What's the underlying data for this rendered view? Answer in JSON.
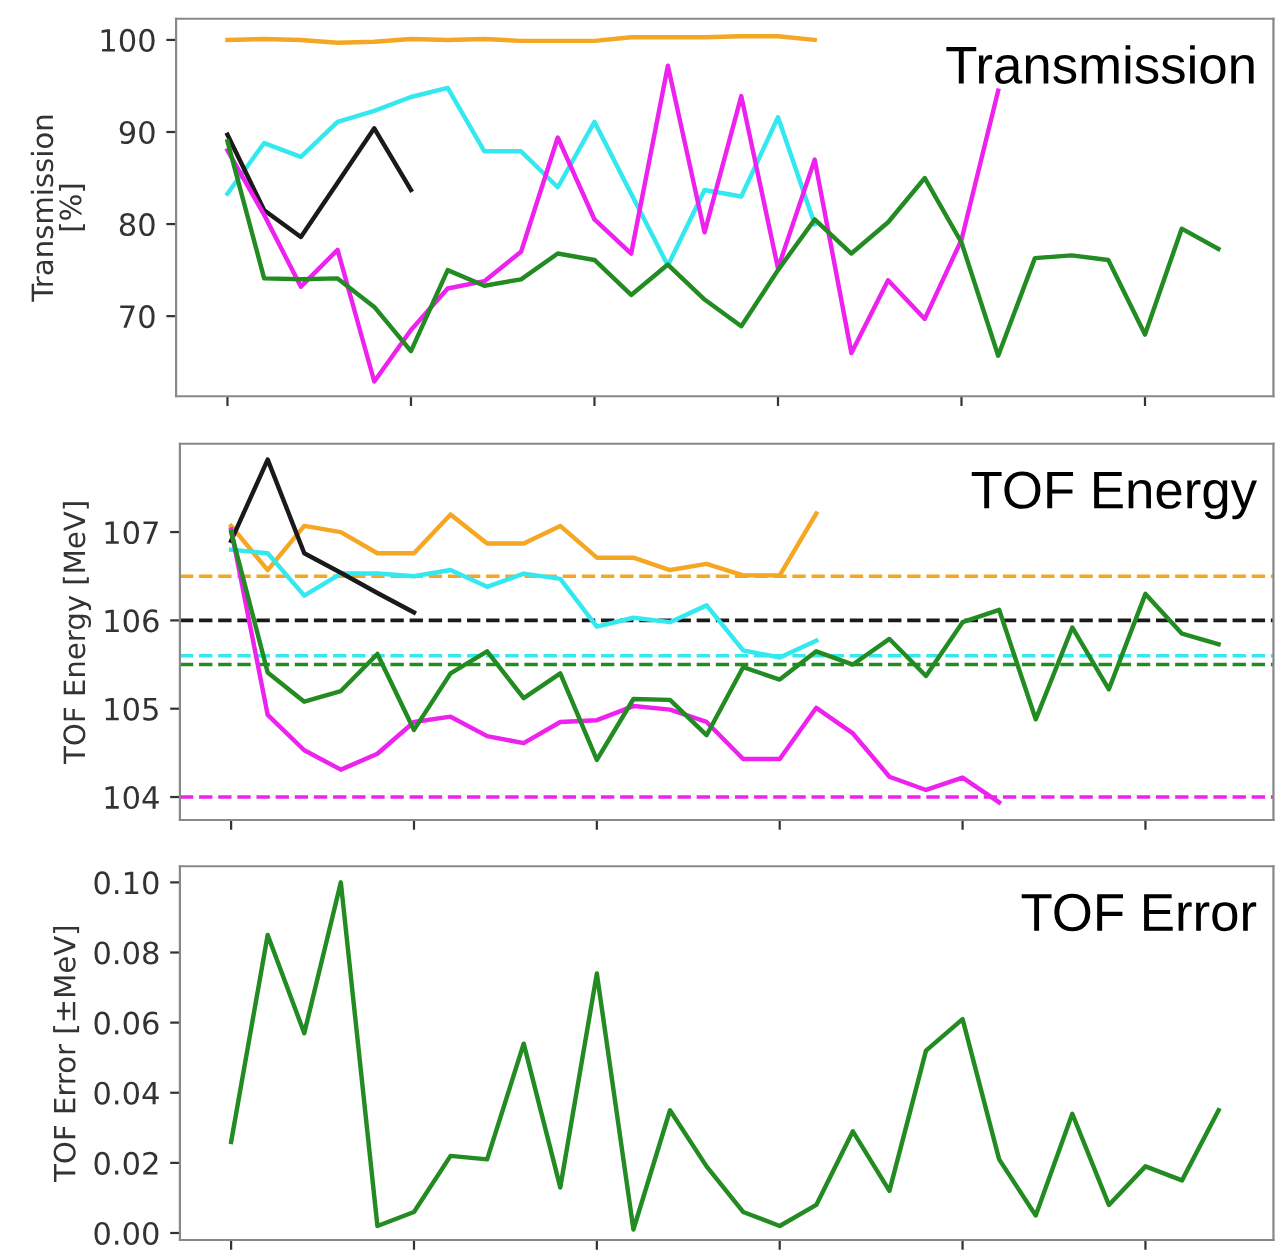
{
  "chart_data": [
    {
      "type": "line",
      "title": "Transmission",
      "ylabel": "Transmission\n[%]",
      "ylim": [
        61.3,
        102.3
      ],
      "categories": [
        null,
        null,
        null,
        null,
        null,
        null,
        null,
        null,
        null,
        null,
        null,
        null,
        null,
        null,
        null,
        null,
        null,
        null,
        null,
        null,
        null,
        null,
        null,
        null,
        null,
        null,
        null,
        null
      ],
      "yticks": [
        70,
        80,
        90,
        100
      ],
      "tick_labels": "y",
      "grid": false,
      "line_style": "solid",
      "marker": "none",
      "series": [
        {
          "color": "#f5a623",
          "values": [
            100,
            100.1,
            100,
            99.7,
            99.8,
            100.1,
            100,
            100.1,
            99.9,
            99.9,
            99.9,
            100.3,
            100.3,
            100.3,
            100.4,
            100.4,
            100,
            null,
            null,
            null,
            null,
            null,
            null,
            null,
            null,
            null,
            null,
            null
          ]
        },
        {
          "color": "#33e8ee",
          "values": [
            83.3,
            88.8,
            87.3,
            91.1,
            92.3,
            93.8,
            94.8,
            87.9,
            87.9,
            84.0,
            91.1,
            83.3,
            75.5,
            83.7,
            83.0,
            91.6,
            80,
            null,
            null,
            null,
            null,
            null,
            null,
            null,
            null,
            null,
            null,
            null
          ]
        },
        {
          "color": "#1a1a1a",
          "values": [
            89.7,
            81.5,
            78.6,
            84.5,
            90.4,
            83.7,
            null,
            null,
            null,
            null,
            null,
            null,
            null,
            null,
            null,
            null,
            null,
            null,
            null,
            null,
            null,
            null,
            null,
            null,
            null,
            null,
            null,
            null
          ]
        },
        {
          "color": "#ee22ee",
          "values": [
            88,
            81,
            73.2,
            77.2,
            62.9,
            68.5,
            73,
            73.8,
            77,
            89.4,
            80.5,
            76.8,
            97.2,
            79.1,
            93.9,
            75.2,
            87.0,
            66.0,
            73.9,
            69.7,
            78.3,
            94.5,
            null,
            null,
            null,
            null,
            null,
            null
          ]
        },
        {
          "color": "#228b22",
          "values": [
            89,
            74.1,
            74,
            74.1,
            71,
            66.2,
            75,
            73.3,
            74,
            76.8,
            76.1,
            72.3,
            75.6,
            71.8,
            68.9,
            75,
            80.5,
            76.8,
            80.2,
            85,
            78,
            65.7,
            76.3,
            76.6,
            76.1,
            68,
            79.5,
            77.3
          ]
        }
      ]
    },
    {
      "type": "line",
      "title": "TOF Energy",
      "ylabel": "TOF Energy [MeV]",
      "ylim": [
        103.74,
        108.0
      ],
      "categories": [
        null,
        null,
        null,
        null,
        null,
        null,
        null,
        null,
        null,
        null,
        null,
        null,
        null,
        null,
        null,
        null,
        null,
        null,
        null,
        null,
        null,
        null,
        null,
        null,
        null,
        null,
        null,
        null
      ],
      "yticks": [
        104,
        105,
        106,
        107
      ],
      "tick_labels": "y",
      "grid": false,
      "line_style": "solid",
      "marker": "none",
      "ref_lines": [
        {
          "axis": "y",
          "value": 106.5,
          "color": "#f5a623",
          "line_style": "dashed"
        },
        {
          "axis": "y",
          "value": 106.0,
          "color": "#1a1a1a",
          "line_style": "dashed"
        },
        {
          "axis": "y",
          "value": 105.6,
          "color": "#33e8ee",
          "line_style": "dashed"
        },
        {
          "axis": "y",
          "value": 105.5,
          "color": "#228b22",
          "line_style": "dashed"
        },
        {
          "axis": "y",
          "value": 104.0,
          "color": "#ee22ee",
          "line_style": "dashed"
        }
      ],
      "series": [
        {
          "color": "#f5a623",
          "values": [
            107.07,
            106.57,
            107.07,
            107.0,
            106.76,
            106.76,
            107.2,
            106.87,
            106.87,
            107.07,
            106.71,
            106.71,
            106.57,
            106.64,
            106.51,
            106.51,
            107.21,
            null,
            null,
            null,
            null,
            null,
            null,
            null,
            null,
            null,
            null,
            null
          ]
        },
        {
          "color": "#33e8ee",
          "values": [
            106.8,
            106.76,
            106.28,
            106.53,
            106.53,
            106.5,
            106.57,
            106.38,
            106.53,
            106.47,
            105.93,
            106.03,
            105.98,
            106.17,
            105.66,
            105.58,
            105.77,
            null,
            null,
            null,
            null,
            null,
            null,
            null,
            null,
            null,
            null,
            null
          ]
        },
        {
          "color": "#1a1a1a",
          "values": [
            106.9,
            107.82,
            106.76,
            106.54,
            106.31,
            106.09,
            null,
            null,
            null,
            null,
            null,
            null,
            null,
            null,
            null,
            null,
            null,
            null,
            null,
            null,
            null,
            null,
            null,
            null,
            null,
            null,
            null,
            null
          ]
        },
        {
          "color": "#ee22ee",
          "values": [
            107.03,
            104.93,
            104.53,
            104.31,
            104.49,
            104.85,
            104.91,
            104.69,
            104.61,
            104.85,
            104.87,
            105.03,
            104.99,
            104.85,
            104.43,
            104.43,
            105.01,
            104.72,
            104.23,
            104.08,
            104.22,
            103.94,
            null,
            null,
            null,
            null,
            null,
            null
          ]
        },
        {
          "color": "#228b22",
          "values": [
            107.0,
            105.41,
            105.08,
            105.2,
            105.62,
            104.76,
            105.4,
            105.65,
            105.12,
            105.4,
            104.42,
            105.11,
            105.1,
            104.7,
            105.47,
            105.33,
            105.65,
            105.5,
            105.79,
            105.37,
            105.98,
            106.12,
            104.88,
            105.92,
            105.22,
            106.3,
            105.85,
            105.73
          ]
        }
      ]
    },
    {
      "type": "line",
      "title": "TOF Error",
      "ylabel": "TOF Error [±MeV]",
      "ylim": [
        -0.002,
        0.1046
      ],
      "categories": [
        null,
        null,
        null,
        null,
        null,
        null,
        null,
        null,
        null,
        null,
        null,
        null,
        null,
        null,
        null,
        null,
        null,
        null,
        null,
        null,
        null,
        null,
        null,
        null,
        null,
        null,
        null,
        null
      ],
      "yticks": [
        {
          "value": 0,
          "label": "0.00"
        },
        {
          "value": 0.02,
          "label": "0.02"
        },
        {
          "value": 0.04,
          "label": "0.04"
        },
        {
          "value": 0.06,
          "label": "0.06"
        },
        {
          "value": 0.08,
          "label": "0.08"
        },
        {
          "value": 0.1,
          "label": "0.10"
        }
      ],
      "tick_labels": "y",
      "grid": false,
      "line_style": "solid",
      "marker": "none",
      "series": [
        {
          "color": "#228b22",
          "values": [
            0.026,
            0.085,
            0.057,
            0.1,
            0.002,
            0.006,
            0.022,
            0.021,
            0.054,
            0.013,
            0.074,
            0.001,
            0.035,
            0.019,
            0.006,
            0.002,
            0.008,
            0.029,
            0.012,
            0.052,
            0.061,
            0.021,
            0.005,
            0.034,
            0.008,
            0.019,
            0.015,
            0.035
          ]
        }
      ]
    }
  ]
}
